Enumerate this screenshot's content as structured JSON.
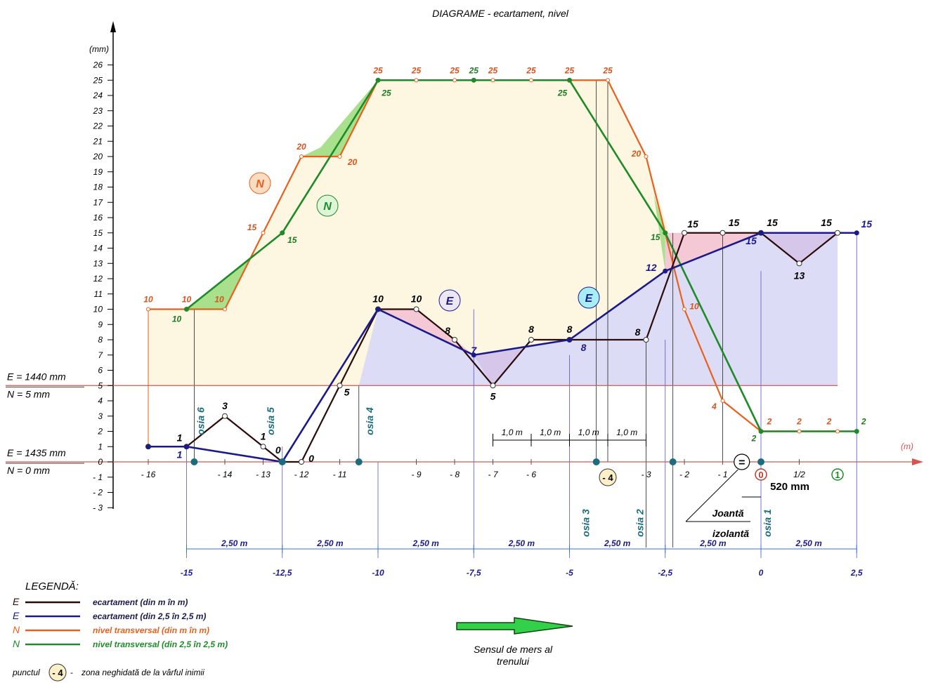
{
  "chart_data": {
    "type": "line",
    "title": "DIAGRAME - ecartament, nivel",
    "ylabel": "(mm)",
    "xlabel": "(m)",
    "ylim": [
      -3,
      26
    ],
    "xlim": [
      -16,
      2.5
    ],
    "y_ticks": [
      "26",
      "25",
      "24",
      "23",
      "22",
      "21",
      "20",
      "19",
      "18",
      "17",
      "16",
      "15",
      "14",
      "13",
      "12",
      "11",
      "10",
      "9",
      "8",
      "7",
      "6",
      "5",
      "4",
      "3",
      "2",
      "1",
      "0",
      "- 1",
      "- 2",
      "- 3"
    ],
    "x_tick_labels": [
      {
        "x": -16,
        "label": "- 16"
      },
      {
        "x": -14,
        "label": "- 14"
      },
      {
        "x": -13,
        "label": "- 13"
      },
      {
        "x": -12,
        "label": "- 12"
      },
      {
        "x": -11,
        "label": "- 11"
      },
      {
        "x": -9,
        "label": "- 9"
      },
      {
        "x": -8,
        "label": "- 8"
      },
      {
        "x": -7,
        "label": "- 7"
      },
      {
        "x": -6,
        "label": "- 6"
      },
      {
        "x": -3,
        "label": "- 3"
      },
      {
        "x": -2,
        "label": "- 2"
      },
      {
        "x": -1,
        "label": "- 1"
      },
      {
        "x": 1,
        "label": "1/2"
      }
    ],
    "reference_lines": [
      {
        "y": 5,
        "label_e": "E = 1440 mm",
        "label_n": "N = 5 mm"
      },
      {
        "y": 0,
        "label_e": "E = 1435  mm",
        "label_n": "N = 0 mm"
      }
    ],
    "series": [
      {
        "name": "E",
        "color": "#2b0a0a",
        "x": [
          -16,
          -15,
          -14,
          -13,
          -12.5,
          -12,
          -11,
          -10,
          -9,
          -8,
          -7,
          -6,
          -5,
          -3,
          -2,
          -1,
          0,
          1,
          2
        ],
        "y": [
          1,
          1,
          3,
          1,
          0,
          0,
          5,
          10,
          10,
          8,
          5,
          8,
          8,
          8,
          15,
          15,
          15,
          13,
          15
        ],
        "labels": [
          "",
          "1",
          "3",
          "1",
          "0",
          "0",
          "5",
          "10",
          "10",
          "8",
          "5",
          "8",
          "8",
          "8",
          "15",
          "15",
          "15",
          "13",
          "15"
        ]
      },
      {
        "name": "E",
        "color": "#1a1a8c",
        "x": [
          -16,
          -15,
          -12.5,
          -10,
          -7.5,
          -5,
          -2.5,
          0,
          2.5
        ],
        "y": [
          1,
          1,
          0,
          10,
          7,
          8,
          12.5,
          15,
          15
        ],
        "labels": [
          "",
          "1",
          "",
          "",
          "7",
          "8",
          "12",
          "15",
          "15"
        ]
      },
      {
        "name": "N",
        "color": "#e8601c",
        "x": [
          -16,
          -15,
          -14,
          -13,
          -12,
          -11,
          -10,
          -9,
          -8,
          -7,
          -6,
          -5,
          -4,
          -3,
          -2,
          -1,
          0,
          1,
          2
        ],
        "y": [
          10,
          10,
          10,
          15,
          20,
          20,
          25,
          25,
          25,
          25,
          25,
          25,
          25,
          20,
          10,
          4,
          2,
          2,
          2
        ],
        "labels": [
          "10",
          "10",
          "10",
          "15",
          "20",
          "20",
          "25",
          "25",
          "25",
          "25",
          "25",
          "25",
          "25",
          "20",
          "10",
          "4",
          "2",
          "2",
          "2"
        ]
      },
      {
        "name": "N",
        "color": "#1e8a28",
        "x": [
          -15,
          -12.5,
          -10,
          -7.5,
          -5,
          -2.5,
          0,
          2.5
        ],
        "y": [
          10,
          15,
          25,
          25,
          25,
          15,
          2,
          2
        ],
        "labels": [
          "10",
          "15",
          "25",
          "25",
          "25",
          "15",
          "2",
          "2"
        ]
      }
    ],
    "circle_labels": [
      {
        "text": "N",
        "color": "#e8601c",
        "fill": "#f9dcc2"
      },
      {
        "text": "N",
        "color": "#1e8a28",
        "fill": "#dff5d8"
      },
      {
        "text": "E",
        "color": "#1a1a8c",
        "fill": "#ece6f5"
      },
      {
        "text": "E",
        "color": "#1a1a8c",
        "fill": "#a8eef8"
      }
    ],
    "axle_labels": [
      "osia 6",
      "osia 5",
      "osia 4",
      "osia 3",
      "osia 2",
      "osia 1"
    ],
    "spacing": {
      "segment_label": "2,50 m",
      "positions": [
        -15,
        -12.5,
        -10,
        -7.5,
        -5,
        -2.5,
        0,
        2.5
      ],
      "position_labels": [
        "-15",
        "-12,5",
        "-10",
        "-7,5",
        "-5",
        "-2,5",
        "0",
        "2,5"
      ]
    },
    "meter_dims": [
      "1,0 m",
      "1,0 m",
      "1,0 m",
      "1,0 m"
    ],
    "special": {
      "point_label": "- 4",
      "joint_symbol": "=",
      "joint_label_1": "Joantă",
      "joint_label_2": "izolantă",
      "gap_label": "520 mm",
      "zero_mark": "0",
      "one_mark": "1"
    },
    "direction": {
      "line1": "Sensul de mers al",
      "line2": "trenului"
    },
    "legend": {
      "title": "LEGENDĂ:",
      "items": [
        {
          "sym": "E",
          "color": "#2b0a0a",
          "text": "ecartament  (din m în m)"
        },
        {
          "sym": "E",
          "color": "#1a1a8c",
          "text": "ecartament  (din 2,5 în 2,5 m)"
        },
        {
          "sym": "N",
          "color": "#e8601c",
          "text": "nivel transversal  (din m în m)"
        },
        {
          "sym": "N",
          "color": "#1e8a28",
          "text": "nivel transversal  (din 2,5 în 2,5 m)"
        }
      ],
      "point_prefix": "punctul",
      "point_symbol": "- 4",
      "point_text": "zona neghidată de la vârful inimii"
    }
  }
}
